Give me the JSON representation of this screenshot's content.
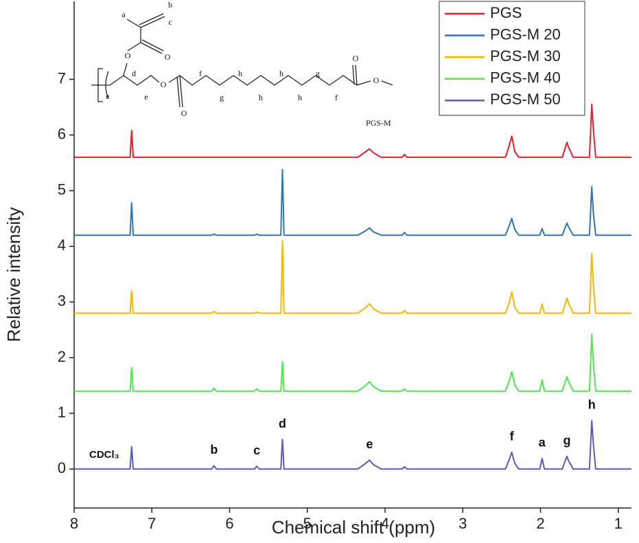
{
  "chart_data": {
    "type": "line",
    "x_label": "Chemical shift (ppm)",
    "y_label": "Relative intensity",
    "x": [
      8.0,
      7.28,
      7.26,
      7.24,
      6.23,
      6.2,
      6.17,
      5.68,
      5.65,
      5.62,
      5.34,
      5.32,
      5.3,
      4.35,
      4.25,
      4.2,
      4.15,
      4.05,
      3.78,
      3.75,
      3.72,
      2.45,
      2.4,
      2.37,
      2.33,
      2.28,
      2.01,
      1.98,
      1.95,
      1.72,
      1.66,
      1.64,
      1.58,
      1.37,
      1.34,
      1.32,
      1.29,
      0.83
    ],
    "series": [
      {
        "name": "PGS",
        "color": "#e8202a",
        "values": [
          5.6,
          5.6,
          6.08,
          5.6,
          5.6,
          5.6,
          5.6,
          5.6,
          5.6,
          5.6,
          5.6,
          5.6,
          5.6,
          5.6,
          5.7,
          5.75,
          5.68,
          5.6,
          5.6,
          5.65,
          5.6,
          5.6,
          5.82,
          5.98,
          5.7,
          5.6,
          5.6,
          5.6,
          5.6,
          5.6,
          5.87,
          5.78,
          5.6,
          5.6,
          6.55,
          6.1,
          5.6,
          5.6
        ]
      },
      {
        "name": "PGS-M 20",
        "color": "#2f74b5",
        "values": [
          4.2,
          4.2,
          4.78,
          4.2,
          4.2,
          4.22,
          4.2,
          4.2,
          4.22,
          4.2,
          4.2,
          5.38,
          4.2,
          4.2,
          4.28,
          4.33,
          4.26,
          4.2,
          4.2,
          4.25,
          4.2,
          4.2,
          4.38,
          4.5,
          4.3,
          4.2,
          4.2,
          4.32,
          4.2,
          4.2,
          4.42,
          4.35,
          4.2,
          4.2,
          5.07,
          4.6,
          4.2,
          4.2
        ]
      },
      {
        "name": "PGS-M 30",
        "color": "#f5b800",
        "values": [
          2.8,
          2.8,
          3.2,
          2.8,
          2.8,
          2.83,
          2.8,
          2.8,
          2.82,
          2.8,
          2.8,
          4.1,
          2.8,
          2.8,
          2.9,
          2.97,
          2.88,
          2.8,
          2.8,
          2.85,
          2.8,
          2.8,
          3.0,
          3.18,
          2.9,
          2.8,
          2.8,
          2.96,
          2.8,
          2.8,
          3.07,
          2.98,
          2.8,
          2.8,
          3.87,
          3.3,
          2.8,
          2.8
        ]
      },
      {
        "name": "PGS-M 40",
        "color": "#4de84d",
        "values": [
          1.4,
          1.4,
          1.82,
          1.4,
          1.4,
          1.45,
          1.4,
          1.4,
          1.44,
          1.4,
          1.4,
          1.93,
          1.4,
          1.4,
          1.5,
          1.57,
          1.48,
          1.4,
          1.4,
          1.44,
          1.4,
          1.4,
          1.6,
          1.75,
          1.5,
          1.4,
          1.4,
          1.6,
          1.4,
          1.4,
          1.66,
          1.57,
          1.4,
          1.4,
          2.42,
          1.9,
          1.4,
          1.4
        ]
      },
      {
        "name": "PGS-M 50",
        "color": "#5a5ab8",
        "values": [
          0,
          0,
          0.4,
          0,
          0,
          0.06,
          0,
          0,
          0.05,
          0,
          0,
          0.53,
          0,
          0,
          0.1,
          0.16,
          0.08,
          0,
          0,
          0.04,
          0,
          0,
          0.18,
          0.3,
          0.1,
          0,
          0,
          0.19,
          0,
          0,
          0.23,
          0.15,
          0,
          0,
          0.87,
          0.45,
          0,
          0
        ]
      }
    ],
    "xlim": [
      8,
      0.83
    ],
    "xticks": [
      8,
      7,
      6,
      5,
      4,
      3,
      2,
      1
    ],
    "ylim": [
      -0.7,
      8.4
    ],
    "yticks": [
      0,
      1,
      2,
      3,
      4,
      5,
      6,
      7
    ],
    "legend": "upper right",
    "annotations": [
      "CDCl₃",
      "b",
      "c",
      "d",
      "e",
      "f",
      "a",
      "g",
      "h"
    ]
  },
  "structure": {
    "name": "PGS-M",
    "labels": [
      "a",
      "b",
      "c",
      "O",
      "O",
      "d",
      "e",
      "e",
      "O",
      "O",
      "f",
      "g",
      "h",
      "h",
      "h",
      "h",
      "g",
      "f",
      "O",
      "O"
    ]
  }
}
